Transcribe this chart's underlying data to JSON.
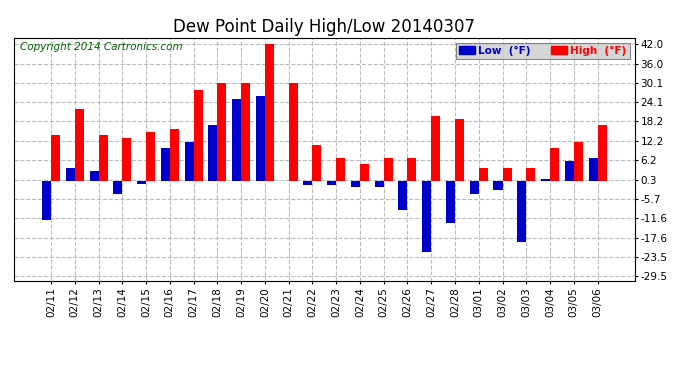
{
  "title": "Dew Point Daily High/Low 20140307",
  "copyright": "Copyright 2014 Cartronics.com",
  "legend_low": "Low  (°F)",
  "legend_high": "High  (°F)",
  "dates": [
    "02/11",
    "02/12",
    "02/13",
    "02/14",
    "02/15",
    "02/16",
    "02/17",
    "02/18",
    "02/19",
    "02/20",
    "02/21",
    "02/22",
    "02/23",
    "02/24",
    "02/25",
    "02/26",
    "02/27",
    "02/28",
    "03/01",
    "03/02",
    "03/03",
    "03/04",
    "03/05",
    "03/06"
  ],
  "high_values": [
    14.0,
    22.0,
    14.0,
    13.0,
    15.0,
    16.0,
    28.0,
    30.0,
    30.0,
    42.0,
    30.0,
    11.0,
    7.0,
    5.0,
    7.0,
    7.0,
    20.0,
    19.0,
    4.0,
    4.0,
    4.0,
    10.0,
    12.0,
    17.0
  ],
  "low_values": [
    -12.0,
    4.0,
    3.0,
    -4.0,
    -1.0,
    10.0,
    12.0,
    17.0,
    25.0,
    26.0,
    0.0,
    -1.5,
    -1.5,
    -2.0,
    -2.0,
    -9.0,
    -22.0,
    -13.0,
    -4.0,
    -3.0,
    -19.0,
    0.5,
    6.0,
    7.0
  ],
  "yticks": [
    42.0,
    36.0,
    30.1,
    24.1,
    18.2,
    12.2,
    6.2,
    0.3,
    -5.7,
    -11.6,
    -17.6,
    -23.5,
    -29.5
  ],
  "ylim_min": -31.0,
  "ylim_max": 44.0,
  "bar_width": 0.38,
  "bg_color": "#ffffff",
  "plot_bg_color": "#ffffff",
  "grid_color": "#bbbbbb",
  "high_color": "#ff0000",
  "low_color": "#0000cc",
  "title_fontsize": 12,
  "copyright_fontsize": 7.5,
  "tick_fontsize": 7.5,
  "legend_fontsize": 7.5
}
